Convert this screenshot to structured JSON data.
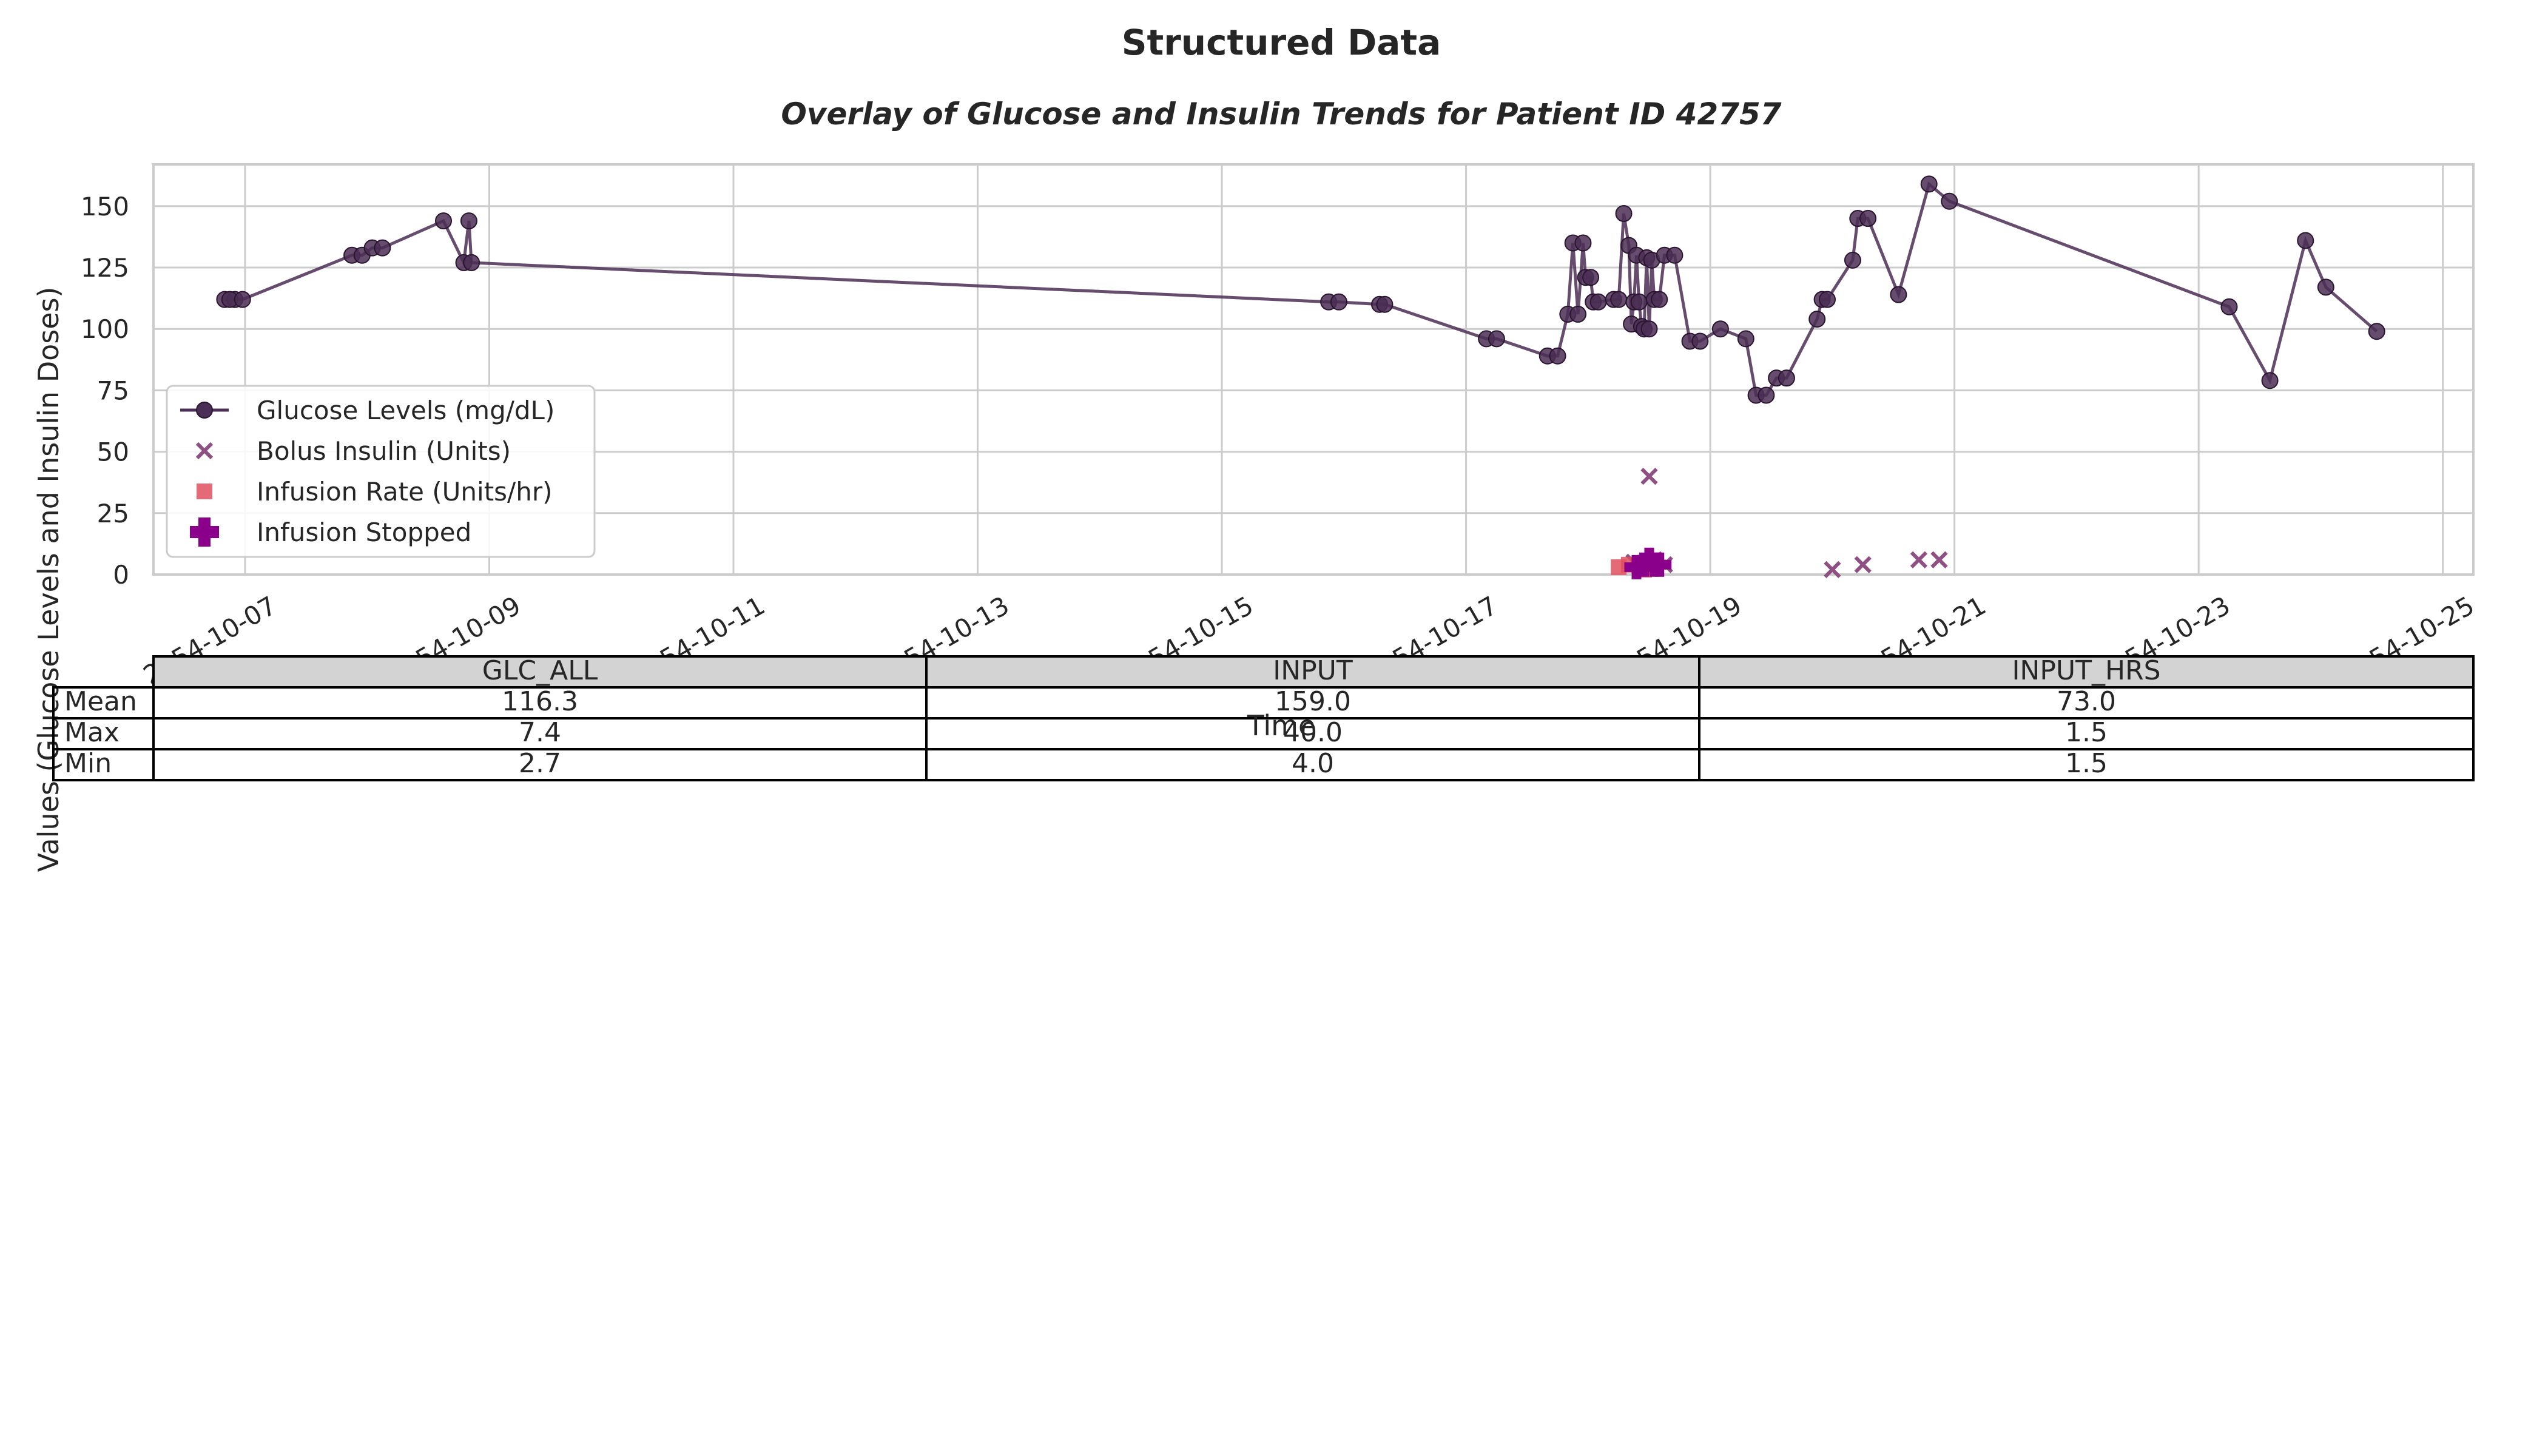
{
  "figure": {
    "suptitle": "Structured Data",
    "title": "Overlay of Glucose and Insulin Trends for Patient ID 42757"
  },
  "chart_data": {
    "type": "line",
    "xlabel": "Time",
    "ylabel": "Values (Glucose Levels and Insulin Doses)",
    "xlim": [
      "2154-10-06 06:00",
      "2154-10-25 06:00"
    ],
    "ylim": [
      0,
      167
    ],
    "x_ticks": [
      "2154-10-07",
      "2154-10-09",
      "2154-10-11",
      "2154-10-13",
      "2154-10-15",
      "2154-10-17",
      "2154-10-19",
      "2154-10-21",
      "2154-10-23",
      "2154-10-25"
    ],
    "y_ticks": [
      0,
      25,
      50,
      75,
      100,
      125,
      150
    ],
    "grid": true,
    "legend_position": "center-left",
    "legend": [
      {
        "label": "Glucose Levels (mg/dL)",
        "marker": "line-circle",
        "color": "#4b2e55"
      },
      {
        "label": "Bolus Insulin (Units)",
        "marker": "x",
        "color": "#8e4f83"
      },
      {
        "label": "Infusion Rate (Units/hr)",
        "marker": "square",
        "color": "#e0505f"
      },
      {
        "label": "Infusion Stopped",
        "marker": "plus",
        "color": "#8b008b"
      }
    ],
    "series": [
      {
        "name": "Glucose Levels (mg/dL)",
        "type": "line",
        "color": "#4b2e55",
        "points": [
          [
            "2154-10-06 20:00",
            112
          ],
          [
            "2154-10-06 22:00",
            112
          ],
          [
            "2154-10-06 21:00",
            112
          ],
          [
            "2154-10-06 23:30",
            112
          ],
          [
            "2154-10-07 21:00",
            130
          ],
          [
            "2154-10-07 23:00",
            130
          ],
          [
            "2154-10-08 01:00",
            133
          ],
          [
            "2154-10-08 03:00",
            133
          ],
          [
            "2154-10-08 15:00",
            144
          ],
          [
            "2154-10-08 19:00",
            127
          ],
          [
            "2154-10-08 20:00",
            144
          ],
          [
            "2154-10-08 20:30",
            127
          ],
          [
            "2154-10-15 21:00",
            111
          ],
          [
            "2154-10-15 23:00",
            111
          ],
          [
            "2154-10-16 07:00",
            110
          ],
          [
            "2154-10-16 08:00",
            110
          ],
          [
            "2154-10-17 04:00",
            96
          ],
          [
            "2154-10-17 06:00",
            96
          ],
          [
            "2154-10-17 16:00",
            89
          ],
          [
            "2154-10-17 18:00",
            89
          ],
          [
            "2154-10-17 20:00",
            106
          ],
          [
            "2154-10-17 21:00",
            135
          ],
          [
            "2154-10-17 22:00",
            106
          ],
          [
            "2154-10-17 23:00",
            135
          ],
          [
            "2154-10-17 23:30",
            121
          ],
          [
            "2154-10-18 00:30",
            121
          ],
          [
            "2154-10-18 01:00",
            111
          ],
          [
            "2154-10-18 02:00",
            111
          ],
          [
            "2154-10-18 05:00",
            112
          ],
          [
            "2154-10-18 06:00",
            112
          ],
          [
            "2154-10-18 07:00",
            147
          ],
          [
            "2154-10-18 08:00",
            134
          ],
          [
            "2154-10-18 08:30",
            102
          ],
          [
            "2154-10-18 09:00",
            111
          ],
          [
            "2154-10-18 09:30",
            130
          ],
          [
            "2154-10-18 10:00",
            111
          ],
          [
            "2154-10-18 10:30",
            101
          ],
          [
            "2154-10-18 11:00",
            100
          ],
          [
            "2154-10-18 11:30",
            129
          ],
          [
            "2154-10-18 12:00",
            100
          ],
          [
            "2154-10-18 12:30",
            128
          ],
          [
            "2154-10-18 13:00",
            112
          ],
          [
            "2154-10-18 14:00",
            112
          ],
          [
            "2154-10-18 15:00",
            130
          ],
          [
            "2154-10-18 17:00",
            130
          ],
          [
            "2154-10-18 20:00",
            95
          ],
          [
            "2154-10-18 22:00",
            95
          ],
          [
            "2154-10-19 02:00",
            100
          ],
          [
            "2154-10-19 07:00",
            96
          ],
          [
            "2154-10-19 09:00",
            73
          ],
          [
            "2154-10-19 11:00",
            73
          ],
          [
            "2154-10-19 13:00",
            80
          ],
          [
            "2154-10-19 15:00",
            80
          ],
          [
            "2154-10-19 21:00",
            104
          ],
          [
            "2154-10-19 22:00",
            112
          ],
          [
            "2154-10-19 23:00",
            112
          ],
          [
            "2154-10-20 04:00",
            128
          ],
          [
            "2154-10-20 05:00",
            145
          ],
          [
            "2154-10-20 07:00",
            145
          ],
          [
            "2154-10-20 13:00",
            114
          ],
          [
            "2154-10-20 19:00",
            159
          ],
          [
            "2154-10-20 23:00",
            152
          ],
          [
            "2154-10-23 06:00",
            109
          ],
          [
            "2154-10-23 14:00",
            79
          ],
          [
            "2154-10-23 21:00",
            136
          ],
          [
            "2154-10-24 01:00",
            117
          ],
          [
            "2154-10-24 11:00",
            99
          ]
        ]
      },
      {
        "name": "Bolus Insulin (Units)",
        "type": "scatter",
        "marker": "x",
        "color": "#8e4f83",
        "points": [
          [
            "2154-10-18 09:00",
            5
          ],
          [
            "2154-10-18 11:00",
            3
          ],
          [
            "2154-10-18 12:00",
            40
          ],
          [
            "2154-10-18 13:00",
            6
          ],
          [
            "2154-10-18 15:00",
            4
          ],
          [
            "2154-10-20 00:00",
            2
          ],
          [
            "2154-10-20 06:00",
            4
          ],
          [
            "2154-10-20 17:00",
            6
          ],
          [
            "2154-10-20 21:00",
            6
          ]
        ]
      },
      {
        "name": "Infusion Rate (Units/hr)",
        "type": "scatter",
        "marker": "square",
        "color": "#e0505f",
        "points": [
          [
            "2154-10-18 06:00",
            3
          ],
          [
            "2154-10-18 08:00",
            4
          ],
          [
            "2154-10-18 10:00",
            4
          ],
          [
            "2154-10-18 11:00",
            2
          ],
          [
            "2154-10-18 12:00",
            5
          ],
          [
            "2154-10-18 13:00",
            3
          ]
        ]
      },
      {
        "name": "Infusion Stopped",
        "type": "scatter",
        "marker": "plus",
        "color": "#8b008b",
        "points": [
          [
            "2154-10-18 09:30",
            3
          ],
          [
            "2154-10-18 11:00",
            4
          ],
          [
            "2154-10-18 12:00",
            6
          ],
          [
            "2154-10-18 13:00",
            4
          ],
          [
            "2154-10-18 14:00",
            4
          ]
        ]
      }
    ]
  },
  "table": {
    "columns": [
      "GLC_ALL",
      "INPUT",
      "INPUT_HRS"
    ],
    "rows": [
      {
        "label": "Mean",
        "values": [
          "116.3",
          "159.0",
          "73.0"
        ]
      },
      {
        "label": "Max",
        "values": [
          "7.4",
          "40.0",
          "1.5"
        ]
      },
      {
        "label": "Min",
        "values": [
          "2.7",
          "4.0",
          "1.5"
        ]
      }
    ]
  }
}
